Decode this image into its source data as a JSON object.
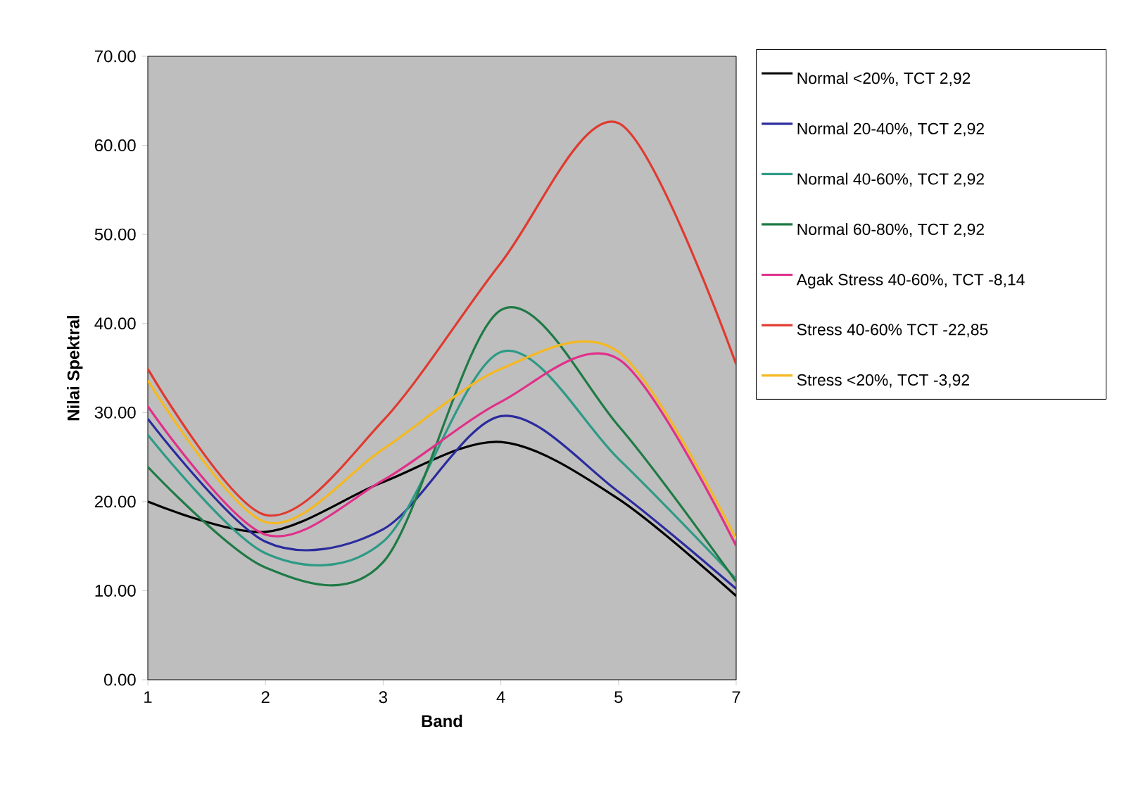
{
  "chart_data": {
    "type": "line",
    "xlabel": "Band",
    "ylabel": "Nilai Spektral",
    "categories": [
      "1",
      "2",
      "3",
      "4",
      "5",
      "7"
    ],
    "series": [
      {
        "name": "Normal <20%, TCT 2,92",
        "color": "#000000",
        "values": [
          20.0,
          16.6,
          22.2,
          26.7,
          20.3,
          9.4
        ]
      },
      {
        "name": "Normal 20-40%, TCT 2,92",
        "color": "#2b2b9e",
        "values": [
          29.3,
          15.5,
          16.9,
          29.6,
          21.1,
          10.2
        ]
      },
      {
        "name": "Normal 40-60%, TCT 2,92",
        "color": "#2e9a86",
        "values": [
          27.5,
          14.2,
          15.5,
          36.8,
          24.8,
          11.3
        ]
      },
      {
        "name": "Normal 60-80%, TCT 2,92",
        "color": "#1f7a45",
        "values": [
          23.9,
          12.6,
          13.2,
          41.5,
          28.5,
          11.0
        ]
      },
      {
        "name": "Agak Stress 40-60%, TCT -8,14",
        "color": "#e0308a",
        "values": [
          30.7,
          16.3,
          22.4,
          31.2,
          36.0,
          15.0
        ]
      },
      {
        "name": "Stress 40-60% TCT -22,85",
        "color": "#e03a30",
        "values": [
          34.9,
          18.5,
          29.1,
          46.8,
          62.5,
          35.4
        ]
      },
      {
        "name": "Stress  <20%, TCT -3,92",
        "color": "#f5b820",
        "values": [
          33.6,
          17.7,
          25.9,
          34.9,
          36.8,
          15.8
        ]
      }
    ],
    "ylim": [
      0,
      70
    ],
    "yticks": [
      {
        "value": 0,
        "label": "0.00"
      },
      {
        "value": 10,
        "label": "10.00"
      },
      {
        "value": 20,
        "label": "20.00"
      },
      {
        "value": 30,
        "label": "30.00"
      },
      {
        "value": 40,
        "label": "40.00"
      },
      {
        "value": 50,
        "label": "50.00"
      },
      {
        "value": 60,
        "label": "60.00"
      },
      {
        "value": 70,
        "label": "70.00"
      }
    ],
    "legend": "right",
    "grid": false,
    "marker": "none",
    "line_style": "solid"
  }
}
